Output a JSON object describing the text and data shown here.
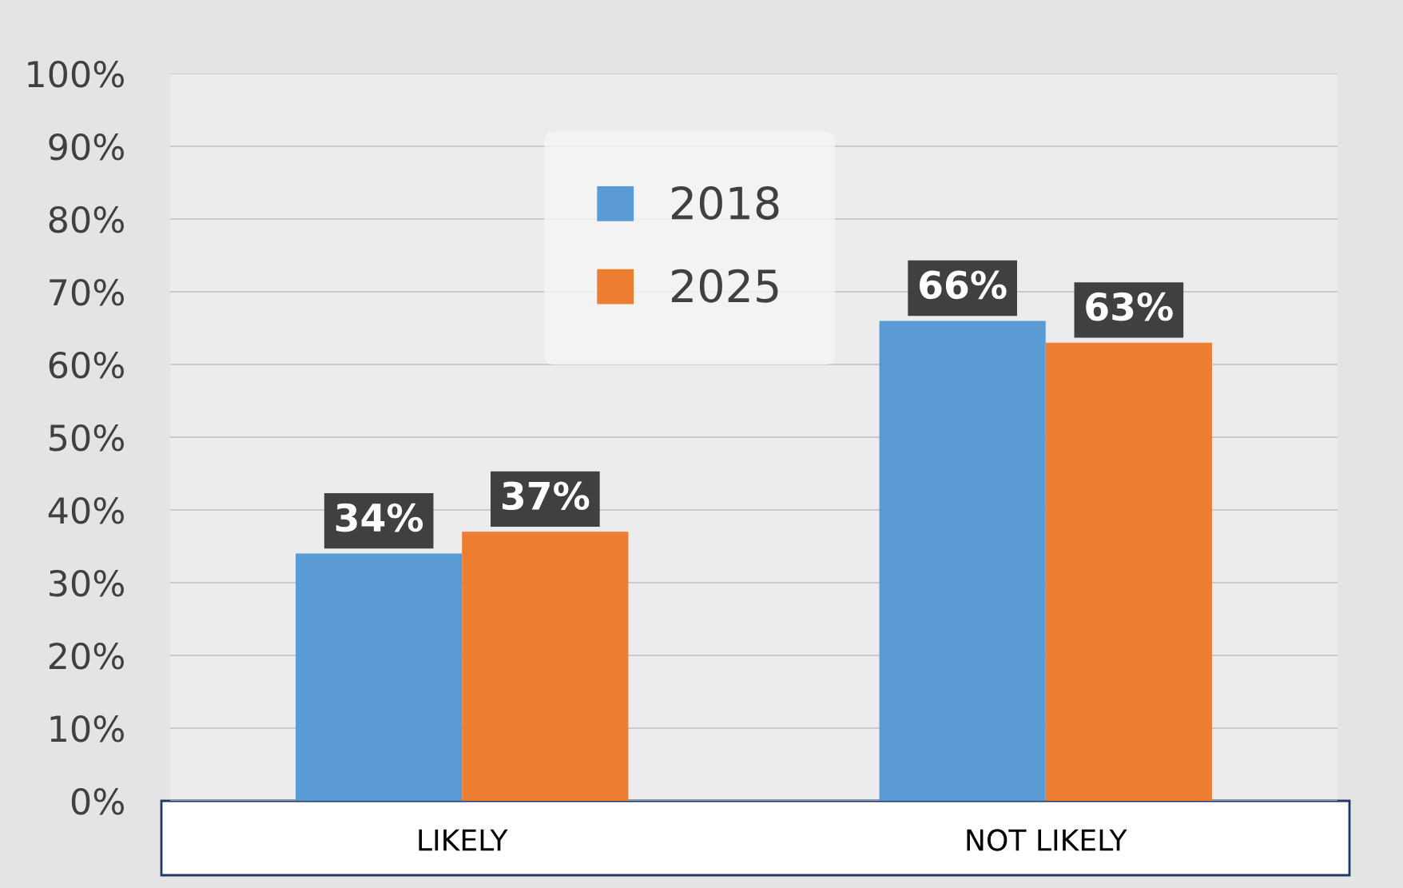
{
  "chart_data": {
    "type": "bar",
    "categories": [
      "LIKELY",
      "NOT LIKELY"
    ],
    "series": [
      {
        "name": "2018",
        "color": "#5b9bd5",
        "values": [
          34,
          66
        ],
        "value_labels": [
          "34%",
          "66%"
        ]
      },
      {
        "name": "2025",
        "color": "#ed7d31",
        "values": [
          37,
          63
        ],
        "value_labels": [
          "37%",
          "63%"
        ]
      }
    ],
    "ylim": [
      0,
      100
    ],
    "yticks": [
      {
        "value": 0,
        "label": "0%"
      },
      {
        "value": 10,
        "label": "10%"
      },
      {
        "value": 20,
        "label": "20%"
      },
      {
        "value": 30,
        "label": "30%"
      },
      {
        "value": 40,
        "label": "40%"
      },
      {
        "value": 50,
        "label": "50%"
      },
      {
        "value": 60,
        "label": "60%"
      },
      {
        "value": 70,
        "label": "70%"
      },
      {
        "value": 80,
        "label": "80%"
      },
      {
        "value": 90,
        "label": "90%"
      },
      {
        "value": 100,
        "label": "100%"
      }
    ],
    "grid": "y",
    "legend": "top"
  }
}
